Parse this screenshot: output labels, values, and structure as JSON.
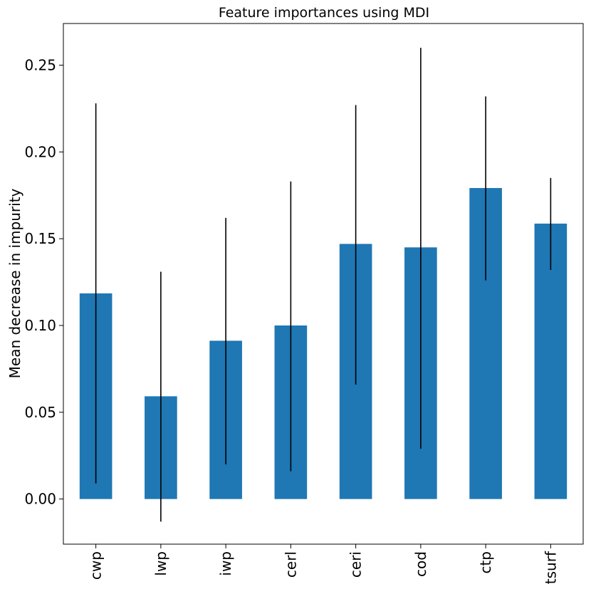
{
  "chart_data": {
    "type": "bar",
    "title": "Feature importances using MDI",
    "xlabel": "",
    "ylabel": "Mean decrease in impurity",
    "categories": [
      "cwp",
      "lwp",
      "iwp",
      "cerl",
      "ceri",
      "cod",
      "ctp",
      "tsurf"
    ],
    "values": [
      0.1185,
      0.0592,
      0.0912,
      0.1,
      0.147,
      0.145,
      0.1792,
      0.1587
    ],
    "error_low": [
      0.009,
      -0.013,
      0.02,
      0.016,
      0.066,
      0.029,
      0.126,
      0.132
    ],
    "error_high": [
      0.228,
      0.131,
      0.162,
      0.183,
      0.227,
      0.26,
      0.232,
      0.185
    ],
    "yticks": [
      "0.00",
      "0.05",
      "0.10",
      "0.15",
      "0.20",
      "0.25"
    ],
    "ylim": [
      -0.026,
      0.274
    ],
    "grid": false,
    "legend": "none",
    "colors": {
      "bar": "#1f77b4",
      "errorbar": "#000000",
      "axes": "#000000"
    }
  }
}
